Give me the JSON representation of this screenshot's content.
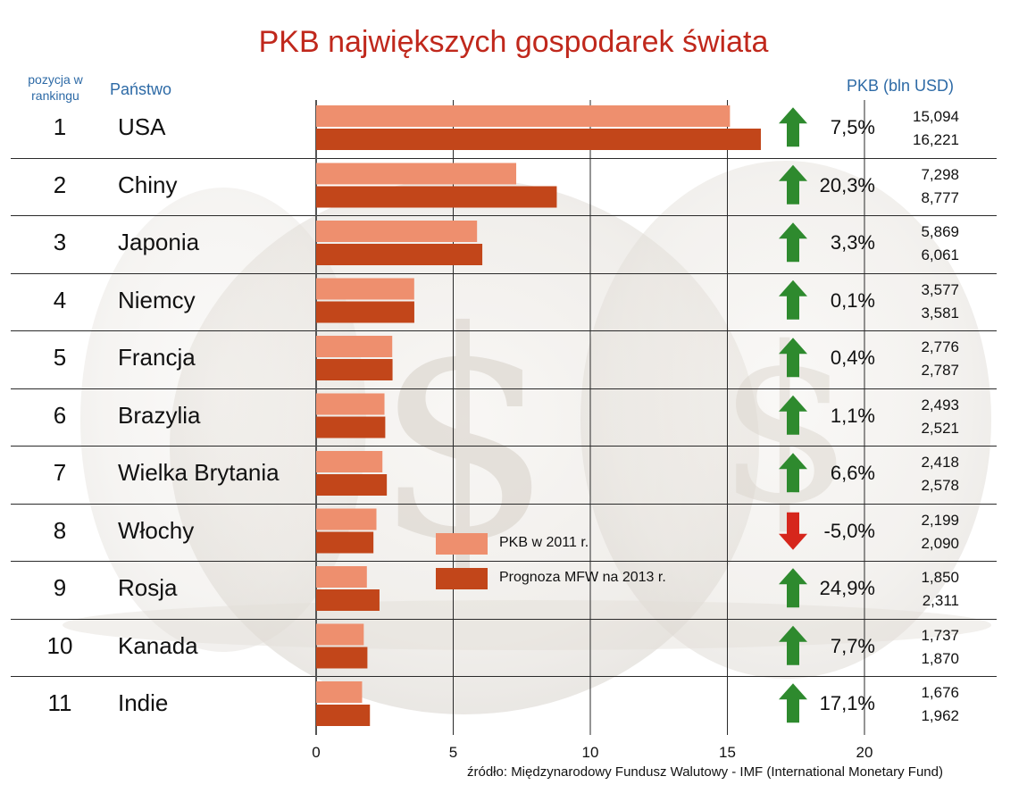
{
  "title": "PKB największych gospodarek świata",
  "headers": {
    "rank": "pozycja w rankingu",
    "country": "Państwo",
    "gdp": "PKB (bln USD)"
  },
  "colors": {
    "title": "#c0281c",
    "header": "#2d6aa6",
    "bar_2011": "#ee8f6e",
    "bar_2013": "#c2461a",
    "arrow_up": "#2e8a2e",
    "arrow_down": "#d6261c"
  },
  "chart_data": {
    "type": "bar",
    "orientation": "horizontal",
    "categories": [
      "USA",
      "Chiny",
      "Japonia",
      "Niemcy",
      "Francja",
      "Brazylia",
      "Wielka Brytania",
      "Włochy",
      "Rosja",
      "Kanada",
      "Indie"
    ],
    "ranks": [
      "1",
      "2",
      "3",
      "4",
      "5",
      "6",
      "7",
      "8",
      "9",
      "10",
      "11"
    ],
    "series": [
      {
        "name": "PKB w 2011 r.",
        "values": [
          15.094,
          7.298,
          5.869,
          3.577,
          2.776,
          2.493,
          2.418,
          2.199,
          1.85,
          1.737,
          1.676
        ],
        "labels": [
          "15,094",
          "7,298",
          "5,869",
          "3,577",
          "2,776",
          "2,493",
          "2,418",
          "2,199",
          "1,850",
          "1,737",
          "1,676"
        ]
      },
      {
        "name": "Prognoza MFW na 2013 r.",
        "values": [
          16.221,
          8.777,
          6.061,
          3.581,
          2.787,
          2.521,
          2.578,
          2.09,
          2.311,
          1.87,
          1.962
        ],
        "labels": [
          "16,221",
          "8,777",
          "6,061",
          "3,581",
          "2,787",
          "2,521",
          "2,578",
          "2,090",
          "2,311",
          "1,870",
          "1,962"
        ]
      }
    ],
    "changes": [
      "7,5%",
      "20,3%",
      "3,3%",
      "0,1%",
      "0,4%",
      "1,1%",
      "6,6%",
      "-5,0%",
      "24,9%",
      "7,7%",
      "17,1%"
    ],
    "directions": [
      "up",
      "up",
      "up",
      "up",
      "up",
      "up",
      "up",
      "down",
      "up",
      "up",
      "up"
    ],
    "xlim": [
      0,
      20
    ],
    "xticks": [
      "0",
      "5",
      "10",
      "15",
      "20"
    ],
    "grid": true,
    "legend_position": "center"
  },
  "source": "źródło: Międzynarodowy Fundusz Walutowy - IMF (International Monetary Fund)"
}
